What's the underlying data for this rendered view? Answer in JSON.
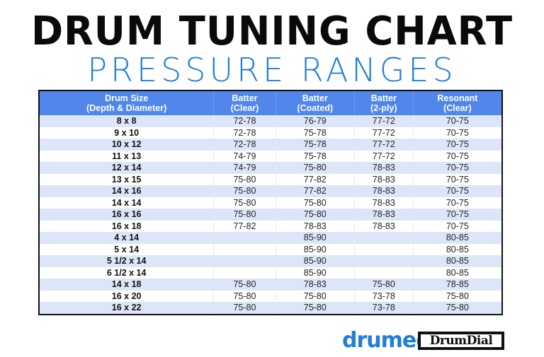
{
  "title": "DRUM TUNING CHART",
  "subtitle": "PRESSURE RANGES",
  "colors": {
    "header": "#5187ea",
    "stripe": "#dce6f8",
    "subtitle": "#1f7ed8"
  },
  "table": {
    "headers": [
      [
        "Drum Size",
        "(Depth & Diameter)"
      ],
      [
        "Batter",
        "(Clear)"
      ],
      [
        "Batter",
        "(Coated)"
      ],
      [
        "Batter",
        "(2-ply)"
      ],
      [
        "Resonant",
        "(Clear)"
      ]
    ],
    "rows": [
      [
        "8 x 8",
        "72-78",
        "76-79",
        "77-72",
        "70-75"
      ],
      [
        "9 x 10",
        "72-78",
        "75-78",
        "77-72",
        "70-75"
      ],
      [
        "10 x 12",
        "72-78",
        "75-78",
        "77-72",
        "70-75"
      ],
      [
        "11 x 13",
        "74-79",
        "75-78",
        "77-72",
        "70-75"
      ],
      [
        "12 x 14",
        "74-79",
        "75-80",
        "78-83",
        "70-75"
      ],
      [
        "13 x 15",
        "75-80",
        "77-82",
        "78-83",
        "70-75"
      ],
      [
        "14 x 16",
        "75-80",
        "77-82",
        "78-83",
        "70-75"
      ],
      [
        "14 x 14",
        "75-80",
        "75-80",
        "78-83",
        "70-75"
      ],
      [
        "16 x 16",
        "75-80",
        "75-80",
        "78-83",
        "70-75"
      ],
      [
        "16 x 18",
        "77-82",
        "78-83",
        "78-83",
        "70-75"
      ],
      [
        "4 x 14",
        "",
        "85-90",
        "",
        "80-85"
      ],
      [
        "5 x 14",
        "",
        "85-90",
        "",
        "80-85"
      ],
      [
        "5 1/2 x 14",
        "",
        "85-90",
        "",
        "80-85"
      ],
      [
        "6 1/2 x 14",
        "",
        "85-90",
        "",
        "80-85"
      ],
      [
        "14 x 18",
        "75-80",
        "78-83",
        "75-80",
        "78-85"
      ],
      [
        "16 x 20",
        "75-80",
        "75-80",
        "73-78",
        "75-80"
      ],
      [
        "16 x 22",
        "75-80",
        "75-80",
        "73-78",
        "75-80"
      ]
    ]
  },
  "logos": {
    "drumeo": "drumeo",
    "drumdial": "DrumDial"
  }
}
